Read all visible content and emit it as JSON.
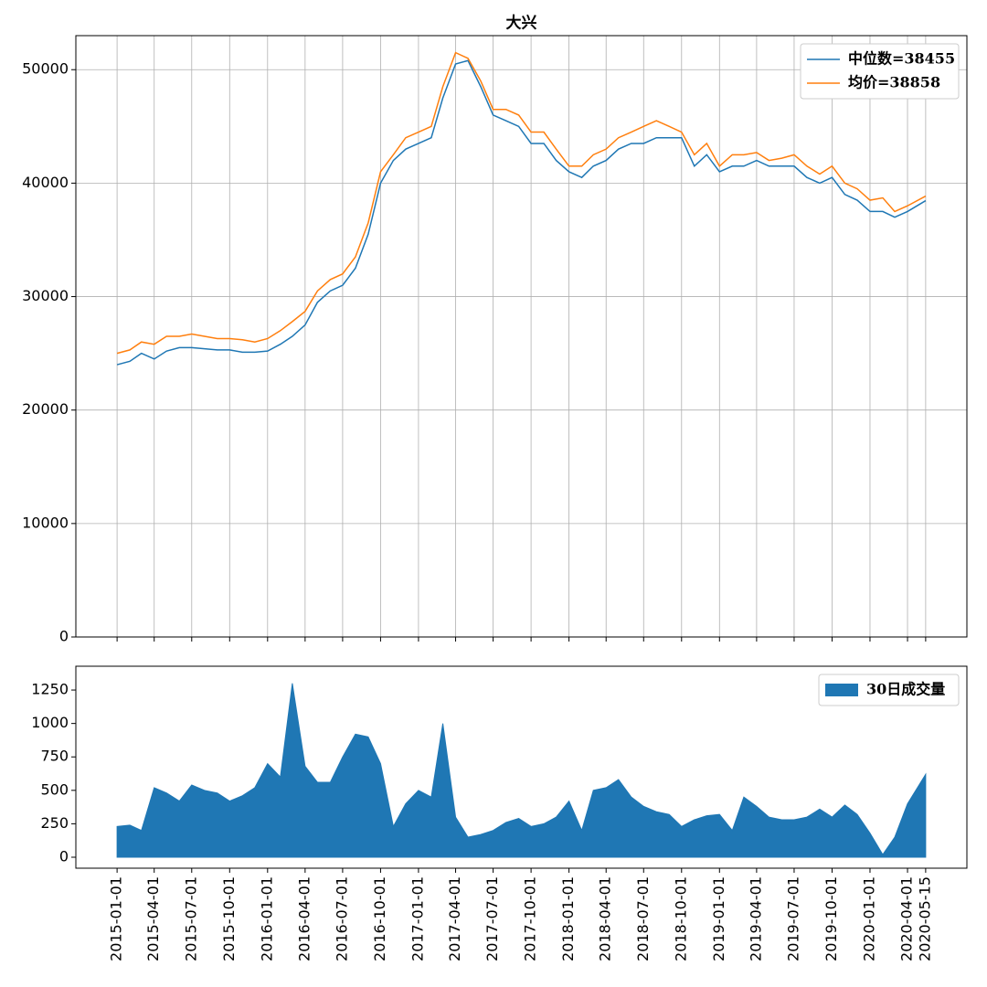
{
  "chart_data": [
    {
      "type": "line",
      "title": "大兴",
      "x": [
        "2015-01-01",
        "2015-02-01",
        "2015-03-01",
        "2015-04-01",
        "2015-05-01",
        "2015-06-01",
        "2015-07-01",
        "2015-08-01",
        "2015-09-01",
        "2015-10-01",
        "2015-11-01",
        "2015-12-01",
        "2016-01-01",
        "2016-02-01",
        "2016-03-01",
        "2016-04-01",
        "2016-05-01",
        "2016-06-01",
        "2016-07-01",
        "2016-08-01",
        "2016-09-01",
        "2016-10-01",
        "2016-11-01",
        "2016-12-01",
        "2017-01-01",
        "2017-02-01",
        "2017-03-01",
        "2017-04-01",
        "2017-05-01",
        "2017-06-01",
        "2017-07-01",
        "2017-08-01",
        "2017-09-01",
        "2017-10-01",
        "2017-11-01",
        "2017-12-01",
        "2018-01-01",
        "2018-02-01",
        "2018-03-01",
        "2018-04-01",
        "2018-05-01",
        "2018-06-01",
        "2018-07-01",
        "2018-08-01",
        "2018-09-01",
        "2018-10-01",
        "2018-11-01",
        "2018-12-01",
        "2019-01-01",
        "2019-02-01",
        "2019-03-01",
        "2019-04-01",
        "2019-05-01",
        "2019-06-01",
        "2019-07-01",
        "2019-08-01",
        "2019-09-01",
        "2019-10-01",
        "2019-11-01",
        "2019-12-01",
        "2020-01-01",
        "2020-02-01",
        "2020-03-01",
        "2020-04-01",
        "2020-05-15"
      ],
      "series": [
        {
          "name": "中位数=38455",
          "color": "#1f77b4",
          "values": [
            24000,
            24300,
            25000,
            24500,
            25200,
            25500,
            25500,
            25400,
            25300,
            25300,
            25100,
            25100,
            25200,
            25800,
            26500,
            27500,
            29500,
            30500,
            31000,
            32500,
            35500,
            40000,
            42000,
            43000,
            43500,
            44000,
            47500,
            50500,
            50800,
            48500,
            46000,
            45500,
            45000,
            43500,
            43500,
            42000,
            41000,
            40500,
            41500,
            42000,
            43000,
            43500,
            43500,
            44000,
            44000,
            44000,
            41500,
            42500,
            41000,
            41500,
            41500,
            42000,
            41500,
            41500,
            41500,
            40500,
            40000,
            40500,
            39000,
            38500,
            37500,
            37500,
            37000,
            37500,
            38455
          ]
        },
        {
          "name": "均价=38858",
          "color": "#ff7f0e",
          "values": [
            25000,
            25300,
            26000,
            25800,
            26500,
            26500,
            26700,
            26500,
            26300,
            26300,
            26200,
            26000,
            26300,
            27000,
            27800,
            28700,
            30500,
            31500,
            32000,
            33500,
            36500,
            41000,
            42500,
            44000,
            44500,
            45000,
            48500,
            51500,
            51000,
            49000,
            46500,
            46500,
            46000,
            44500,
            44500,
            43000,
            41500,
            41500,
            42500,
            43000,
            44000,
            44500,
            45000,
            45500,
            45000,
            44500,
            42500,
            43500,
            41500,
            42500,
            42500,
            42700,
            42000,
            42200,
            42500,
            41500,
            40800,
            41500,
            40000,
            39500,
            38500,
            38700,
            37500,
            38000,
            38858
          ]
        }
      ],
      "xlim": [
        "2014-09-23",
        "2020-08-23"
      ],
      "xticks": [
        "2015-01-01",
        "2015-04-01",
        "2015-07-01",
        "2015-10-01",
        "2016-01-01",
        "2016-04-01",
        "2016-07-01",
        "2016-10-01",
        "2017-01-01",
        "2017-04-01",
        "2017-07-01",
        "2017-10-01",
        "2018-01-01",
        "2018-04-01",
        "2018-07-01",
        "2018-10-01",
        "2019-01-01",
        "2019-04-01",
        "2019-07-01",
        "2019-10-01",
        "2020-01-01",
        "2020-04-01",
        "2020-05-15"
      ],
      "ylim": [
        0,
        53000
      ],
      "yticks": [
        0,
        10000,
        20000,
        30000,
        40000,
        50000
      ],
      "grid": true,
      "legend": "upper right"
    },
    {
      "type": "area",
      "x": [
        "2015-01-01",
        "2015-02-01",
        "2015-03-01",
        "2015-04-01",
        "2015-05-01",
        "2015-06-01",
        "2015-07-01",
        "2015-08-01",
        "2015-09-01",
        "2015-10-01",
        "2015-11-01",
        "2015-12-01",
        "2016-01-01",
        "2016-02-01",
        "2016-03-01",
        "2016-04-01",
        "2016-05-01",
        "2016-06-01",
        "2016-07-01",
        "2016-08-01",
        "2016-09-01",
        "2016-10-01",
        "2016-11-01",
        "2016-12-01",
        "2017-01-01",
        "2017-02-01",
        "2017-03-01",
        "2017-04-01",
        "2017-05-01",
        "2017-06-01",
        "2017-07-01",
        "2017-08-01",
        "2017-09-01",
        "2017-10-01",
        "2017-11-01",
        "2017-12-01",
        "2018-01-01",
        "2018-02-01",
        "2018-03-01",
        "2018-04-01",
        "2018-05-01",
        "2018-06-01",
        "2018-07-01",
        "2018-08-01",
        "2018-09-01",
        "2018-10-01",
        "2018-11-01",
        "2018-12-01",
        "2019-01-01",
        "2019-02-01",
        "2019-03-01",
        "2019-04-01",
        "2019-05-01",
        "2019-06-01",
        "2019-07-01",
        "2019-08-01",
        "2019-09-01",
        "2019-10-01",
        "2019-11-01",
        "2019-12-01",
        "2020-01-01",
        "2020-02-01",
        "2020-03-01",
        "2020-04-01",
        "2020-05-15"
      ],
      "series": [
        {
          "name": "30日成交量",
          "color": "#1f77b4",
          "values": [
            230,
            240,
            200,
            520,
            480,
            420,
            540,
            500,
            480,
            420,
            460,
            520,
            700,
            600,
            1300,
            680,
            560,
            560,
            750,
            920,
            900,
            700,
            230,
            400,
            500,
            450,
            1000,
            300,
            150,
            170,
            200,
            260,
            290,
            230,
            250,
            300,
            420,
            200,
            500,
            520,
            580,
            450,
            380,
            340,
            320,
            230,
            280,
            310,
            320,
            200,
            450,
            380,
            300,
            280,
            280,
            300,
            360,
            300,
            390,
            320,
            180,
            20,
            150,
            400,
            620
          ]
        }
      ],
      "xlim": [
        "2014-09-23",
        "2020-08-23"
      ],
      "xticks": [
        "2015-01-01",
        "2015-04-01",
        "2015-07-01",
        "2015-10-01",
        "2016-01-01",
        "2016-04-01",
        "2016-07-01",
        "2016-10-01",
        "2017-01-01",
        "2017-04-01",
        "2017-07-01",
        "2017-10-01",
        "2018-01-01",
        "2018-04-01",
        "2018-07-01",
        "2018-10-01",
        "2019-01-01",
        "2019-04-01",
        "2019-07-01",
        "2019-10-01",
        "2020-01-01",
        "2020-04-01",
        "2020-05-15"
      ],
      "ylim": [
        -82,
        1428
      ],
      "yticks": [
        0,
        250,
        500,
        750,
        1000,
        1250
      ],
      "grid": false,
      "legend": "upper right"
    }
  ]
}
